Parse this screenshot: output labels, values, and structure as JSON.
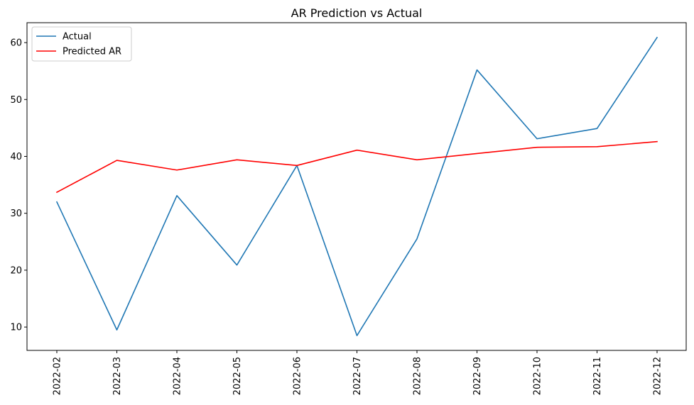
{
  "chart_data": {
    "type": "line",
    "title": "AR Prediction vs Actual",
    "xlabel": "",
    "ylabel": "",
    "categories": [
      "2022-02",
      "2022-03",
      "2022-04",
      "2022-05",
      "2022-06",
      "2022-07",
      "2022-08",
      "2022-09",
      "2022-10",
      "2022-11",
      "2022-12"
    ],
    "series": [
      {
        "name": "Actual",
        "color": "#1f77b4",
        "values": [
          32.0,
          9.5,
          33.1,
          20.9,
          38.4,
          8.5,
          25.5,
          55.2,
          43.1,
          44.9,
          60.9
        ]
      },
      {
        "name": "Predicted AR",
        "color": "#ff0000",
        "values": [
          33.7,
          39.3,
          37.6,
          39.4,
          38.4,
          41.1,
          39.4,
          40.5,
          41.6,
          41.7,
          42.6
        ]
      }
    ],
    "yticks": [
      10,
      20,
      30,
      40,
      50,
      60
    ],
    "ylim": [
      5.9,
      63.5
    ],
    "legend_position": "upper-left",
    "grid": false
  }
}
